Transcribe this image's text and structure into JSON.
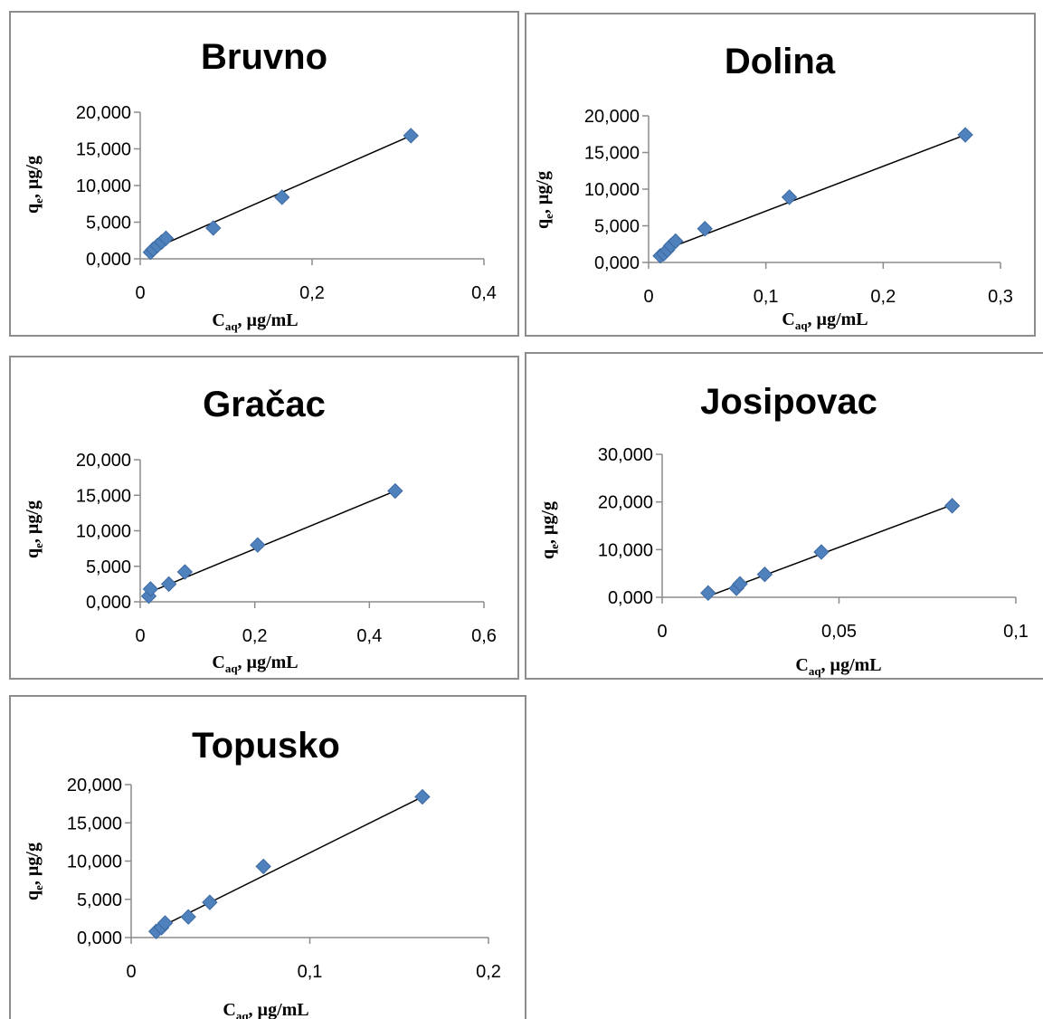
{
  "colors": {
    "marker": "#4f81bd",
    "marker_edge": "#3c6aa3",
    "axis": "#8c8c8c",
    "trendline": "#000000"
  },
  "chart_data": [
    {
      "type": "scatter",
      "title": "Bruvno",
      "xlabel": {
        "main": "C",
        "sub": "aq",
        "rest": ", µg/mL"
      },
      "ylabel": {
        "main": "q",
        "sub": "e",
        "rest": ", µg/g"
      },
      "xlim": [
        0,
        0.4
      ],
      "ylim": [
        0,
        20
      ],
      "xticks": [
        0,
        0.2,
        0.4
      ],
      "xtick_labels": [
        "0",
        "0,2",
        "0,4"
      ],
      "yticks": [
        0,
        5,
        10,
        15,
        20
      ],
      "ytick_labels": [
        "0,000",
        "5,000",
        "10,000",
        "15,000",
        "20,000"
      ],
      "series": [
        {
          "x": [
            0.012,
            0.015,
            0.02,
            0.025,
            0.03,
            0.085,
            0.165,
            0.315
          ],
          "y": [
            0.9,
            1.3,
            1.8,
            2.3,
            2.8,
            4.2,
            8.4,
            16.8
          ]
        }
      ],
      "trendline": {
        "x": [
          0.012,
          0.315
        ],
        "y": [
          1.2,
          16.8
        ]
      }
    },
    {
      "type": "scatter",
      "title": "Dolina",
      "xlabel": {
        "main": "C",
        "sub": "aq",
        "rest": ", µg/mL"
      },
      "ylabel": {
        "main": "q",
        "sub": "e",
        "rest": ", µg/g"
      },
      "xlim": [
        0,
        0.3
      ],
      "ylim": [
        0,
        20
      ],
      "xticks": [
        0,
        0.1,
        0.2,
        0.3
      ],
      "xtick_labels": [
        "0",
        "0,1",
        "0,2",
        "0,3"
      ],
      "yticks": [
        0,
        5,
        10,
        15,
        20
      ],
      "ytick_labels": [
        "0,000",
        "5,000",
        "10,000",
        "15,000",
        "20,000"
      ],
      "series": [
        {
          "x": [
            0.01,
            0.013,
            0.016,
            0.019,
            0.023,
            0.048,
            0.12,
            0.27
          ],
          "y": [
            0.9,
            1.2,
            1.7,
            2.3,
            2.9,
            4.6,
            8.9,
            17.4
          ]
        }
      ],
      "trendline": {
        "x": [
          0.01,
          0.27
        ],
        "y": [
          1.5,
          17.4
        ]
      }
    },
    {
      "type": "scatter",
      "title": "Gračac",
      "xlabel": {
        "main": "C",
        "sub": "aq",
        "rest": ", µg/mL"
      },
      "ylabel": {
        "main": "q",
        "sub": "e",
        "rest": ", µg/g"
      },
      "xlim": [
        0,
        0.6
      ],
      "ylim": [
        0,
        20
      ],
      "xticks": [
        0,
        0.2,
        0.4,
        0.6
      ],
      "xtick_labels": [
        "0",
        "0,2",
        "0,4",
        "0,6"
      ],
      "yticks": [
        0,
        5,
        10,
        15,
        20
      ],
      "ytick_labels": [
        "0,000",
        "5,000",
        "10,000",
        "15,000",
        "20,000"
      ],
      "series": [
        {
          "x": [
            0.015,
            0.018,
            0.05,
            0.078,
            0.205,
            0.445
          ],
          "y": [
            0.8,
            1.8,
            2.5,
            4.2,
            8.0,
            15.6
          ]
        }
      ],
      "trendline": {
        "x": [
          0.012,
          0.445
        ],
        "y": [
          1.2,
          15.6
        ]
      }
    },
    {
      "type": "scatter",
      "title": "Josipovac",
      "xlabel": {
        "main": "C",
        "sub": "aq",
        "rest": ", µg/mL"
      },
      "ylabel": {
        "main": "q",
        "sub": "e",
        "rest": ", µg/g"
      },
      "xlim": [
        0,
        0.1
      ],
      "ylim": [
        0,
        30
      ],
      "xticks": [
        0,
        0.05,
        0.1
      ],
      "xtick_labels": [
        "0",
        "0,05",
        "0,1"
      ],
      "yticks": [
        0,
        10,
        20,
        30
      ],
      "ytick_labels": [
        "0,000",
        "10,000",
        "20,000",
        "30,000"
      ],
      "series": [
        {
          "x": [
            0.013,
            0.021,
            0.022,
            0.029,
            0.045,
            0.082
          ],
          "y": [
            0.9,
            1.9,
            2.8,
            4.8,
            9.5,
            19.2
          ]
        }
      ],
      "trendline": {
        "x": [
          0.013,
          0.082
        ],
        "y": [
          0.2,
          19.4
        ]
      }
    },
    {
      "type": "scatter",
      "title": "Topusko",
      "xlabel": {
        "main": "C",
        "sub": "aq",
        "rest": ", µg/mL"
      },
      "ylabel": {
        "main": "q",
        "sub": "e",
        "rest": ", µg/g"
      },
      "xlim": [
        0,
        0.2
      ],
      "ylim": [
        0,
        20
      ],
      "xticks": [
        0,
        0.1,
        0.2
      ],
      "xtick_labels": [
        "0",
        "0,1",
        "0,2"
      ],
      "yticks": [
        0,
        5,
        10,
        15,
        20
      ],
      "ytick_labels": [
        "0,000",
        "5,000",
        "10,000",
        "15,000",
        "20,000"
      ],
      "series": [
        {
          "x": [
            0.014,
            0.017,
            0.019,
            0.032,
            0.044,
            0.074,
            0.163
          ],
          "y": [
            0.8,
            1.3,
            1.9,
            2.7,
            4.6,
            9.3,
            18.4
          ]
        }
      ],
      "trendline": {
        "x": [
          0.014,
          0.163
        ],
        "y": [
          1.1,
          18.4
        ]
      }
    }
  ]
}
